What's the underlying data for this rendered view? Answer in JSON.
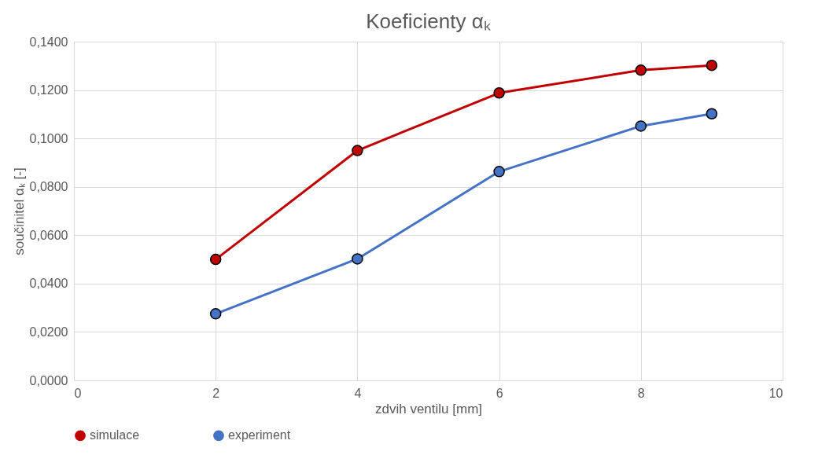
{
  "chart_data": {
    "type": "line",
    "title": "Koeficienty αₖ",
    "xlabel": "zdvih ventilu [mm]",
    "ylabel": "součinitel αₖ [-]",
    "x": [
      2,
      4,
      6,
      8,
      9
    ],
    "series": [
      {
        "name": "simulace",
        "color": "#c00000",
        "values": [
          0.05,
          0.095,
          0.1188,
          0.1282,
          0.1302
        ]
      },
      {
        "name": "experiment",
        "color": "#4472c4",
        "values": [
          0.0275,
          0.0502,
          0.0863,
          0.1051,
          0.1102
        ]
      }
    ],
    "xlim": [
      0,
      10
    ],
    "xticks": [
      0,
      2,
      4,
      6,
      8,
      10
    ],
    "ylim": [
      0,
      0.14
    ],
    "yticks": [
      {
        "value": 0,
        "label": "0,0000"
      },
      {
        "value": 0.02,
        "label": "0,0200"
      },
      {
        "value": 0.04,
        "label": "0,0400"
      },
      {
        "value": 0.06,
        "label": "0,0600"
      },
      {
        "value": 0.08,
        "label": "0,0800"
      },
      {
        "value": 0.1,
        "label": "0,1000"
      },
      {
        "value": 0.12,
        "label": "0,1200"
      },
      {
        "value": 0.14,
        "label": "0,1400"
      }
    ],
    "grid": true,
    "legend": "bottom",
    "marker": "circle",
    "line_style": "solid"
  }
}
